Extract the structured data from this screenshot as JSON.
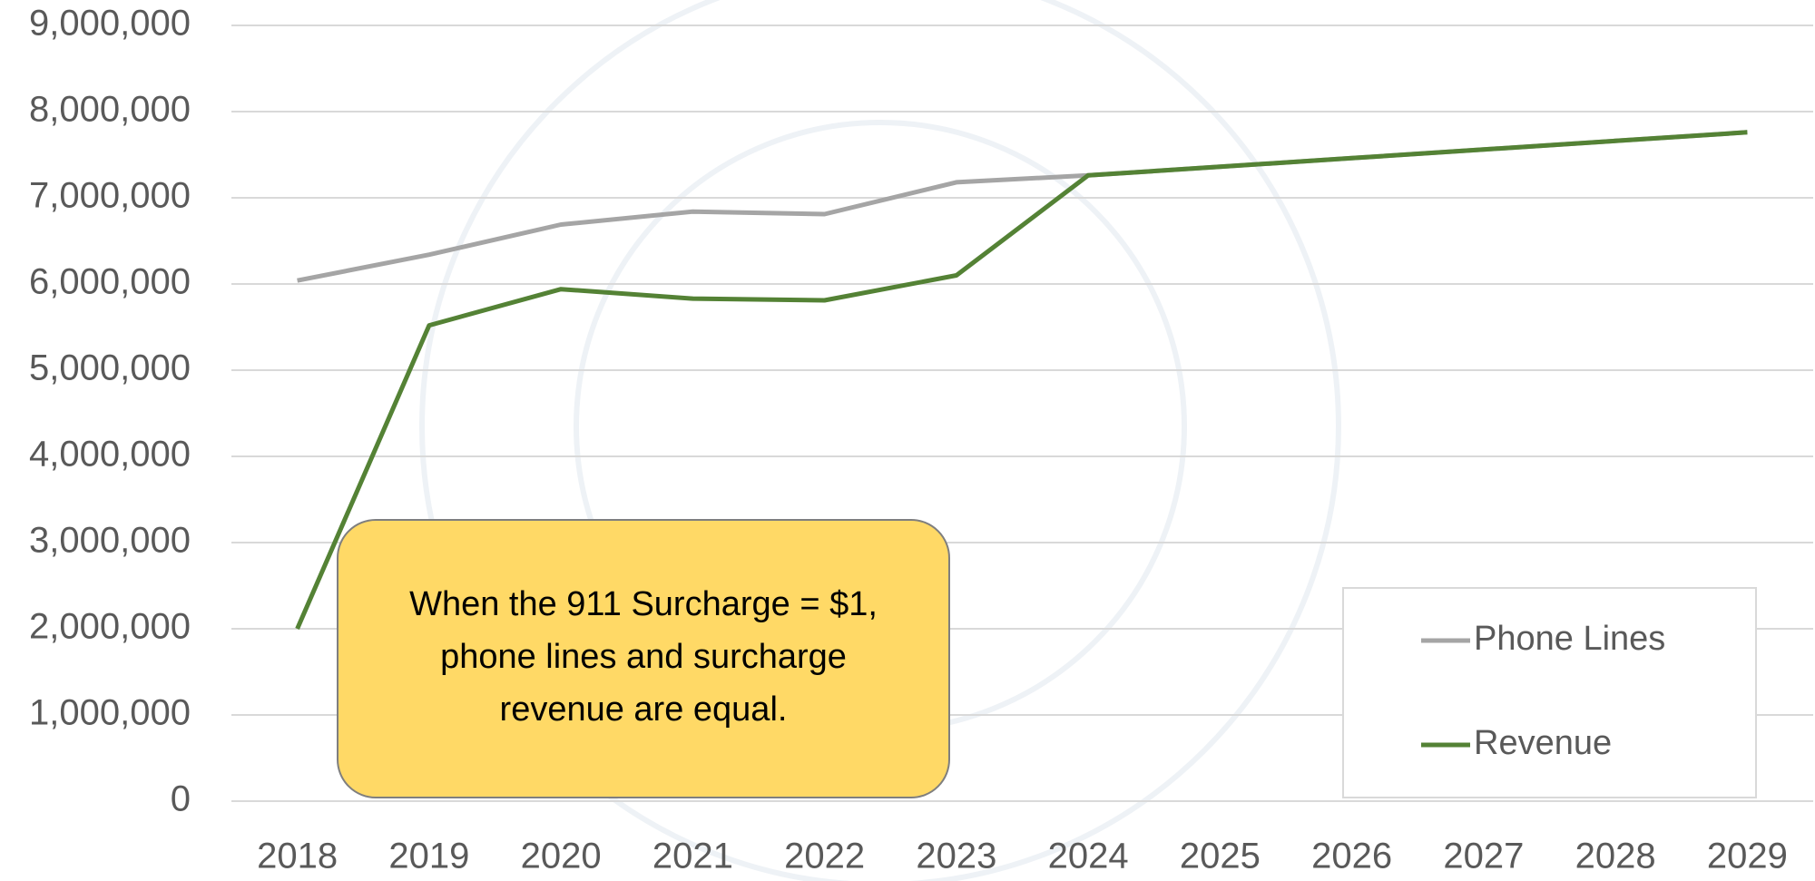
{
  "chart_data": {
    "type": "line",
    "categories": [
      "2018",
      "2019",
      "2020",
      "2021",
      "2022",
      "2023",
      "2024",
      "2025",
      "2026",
      "2027",
      "2028",
      "2029"
    ],
    "series": [
      {
        "name": "Phone Lines",
        "color": "#a5a5a5",
        "values": [
          6040000,
          6340000,
          6690000,
          6840000,
          6810000,
          7180000,
          7260000,
          7360000,
          7460000,
          7560000,
          7660000,
          7760000
        ]
      },
      {
        "name": "Revenue",
        "color": "#548235",
        "values": [
          2000000,
          5520000,
          5940000,
          5830000,
          5810000,
          6100000,
          7260000,
          7360000,
          7460000,
          7560000,
          7660000,
          7760000
        ]
      }
    ],
    "ylim": [
      0,
      9000000
    ],
    "yticks": [
      0,
      {
        "value": 1000000,
        "label": "1,000,000"
      },
      {
        "value": 2000000,
        "label": "2,000,000"
      },
      {
        "value": 3000000,
        "label": "3,000,000"
      },
      {
        "value": 4000000,
        "label": "4,000,000"
      },
      {
        "value": 5000000,
        "label": "5,000,000"
      },
      {
        "value": 6000000,
        "label": "6,000,000"
      },
      {
        "value": 7000000,
        "label": "7,000,000"
      },
      {
        "value": 8000000,
        "label": "8,000,000"
      },
      {
        "value": 9000000,
        "label": "9,000,000"
      }
    ],
    "grid": true,
    "legend": "lower right",
    "annotation": {
      "lines": [
        "When the 911 Surcharge = $1,",
        "phone lines and surcharge",
        "revenue are equal."
      ],
      "color": "#ffd966"
    }
  }
}
